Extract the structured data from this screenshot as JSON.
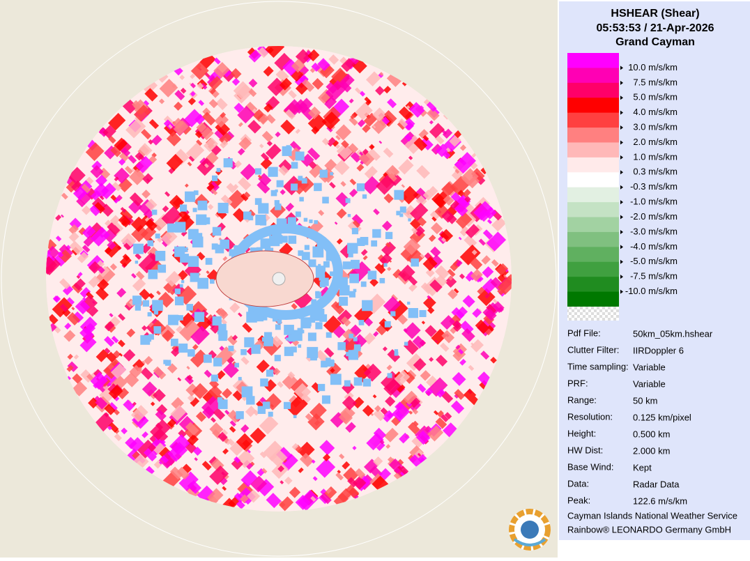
{
  "header": {
    "title": "HSHEAR (Shear)",
    "time": "05:53:53 / 21-Apr-2026",
    "site": "Grand Cayman"
  },
  "legend": {
    "colors": [
      "#ff00ff",
      "#ff00b4",
      "#ff0068",
      "#ff0000",
      "#ff4040",
      "#ff8080",
      "#ffb8b8",
      "#ffeaea",
      "#ffffff",
      "#e2f0e2",
      "#c4e2c4",
      "#a2d2a2",
      "#80c080",
      "#60b060",
      "#40a040",
      "#208c20",
      "#007800"
    ],
    "labels": [
      "10.0 m/s/km",
      "7.5 m/s/km",
      "5.0 m/s/km",
      "4.0 m/s/km",
      "3.0 m/s/km",
      "2.0 m/s/km",
      "1.0 m/s/km",
      "0.3 m/s/km",
      "-0.3 m/s/km",
      "-1.0 m/s/km",
      "-2.0 m/s/km",
      "-3.0 m/s/km",
      "-4.0 m/s/km",
      "-5.0 m/s/km",
      "-7.5 m/s/km",
      "-10.0 m/s/km"
    ]
  },
  "info": [
    {
      "label": "Pdf File:",
      "value": "50km_05km.hshear"
    },
    {
      "label": "Clutter Filter:",
      "value": "IIRDoppler 6"
    },
    {
      "label": "Time sampling:",
      "value": "Variable"
    },
    {
      "label": "PRF:",
      "value": "Variable"
    },
    {
      "label": "Range:",
      "value": "50 km"
    },
    {
      "label": "Resolution:",
      "value": "0.125 km/pixel"
    },
    {
      "label": "Height:",
      "value": "0.500 km"
    },
    {
      "label": "HW Dist:",
      "value": "2.000 km"
    },
    {
      "label": "Base Wind:",
      "value": "Kept"
    },
    {
      "label": "Data:",
      "value": "Radar Data"
    },
    {
      "label": "Peak:",
      "value": "122.6 m/s/km"
    }
  ],
  "footer": [
    "Cayman Islands National Weather Service",
    "Rainbow® LEONARDO Germany GmbH"
  ]
}
